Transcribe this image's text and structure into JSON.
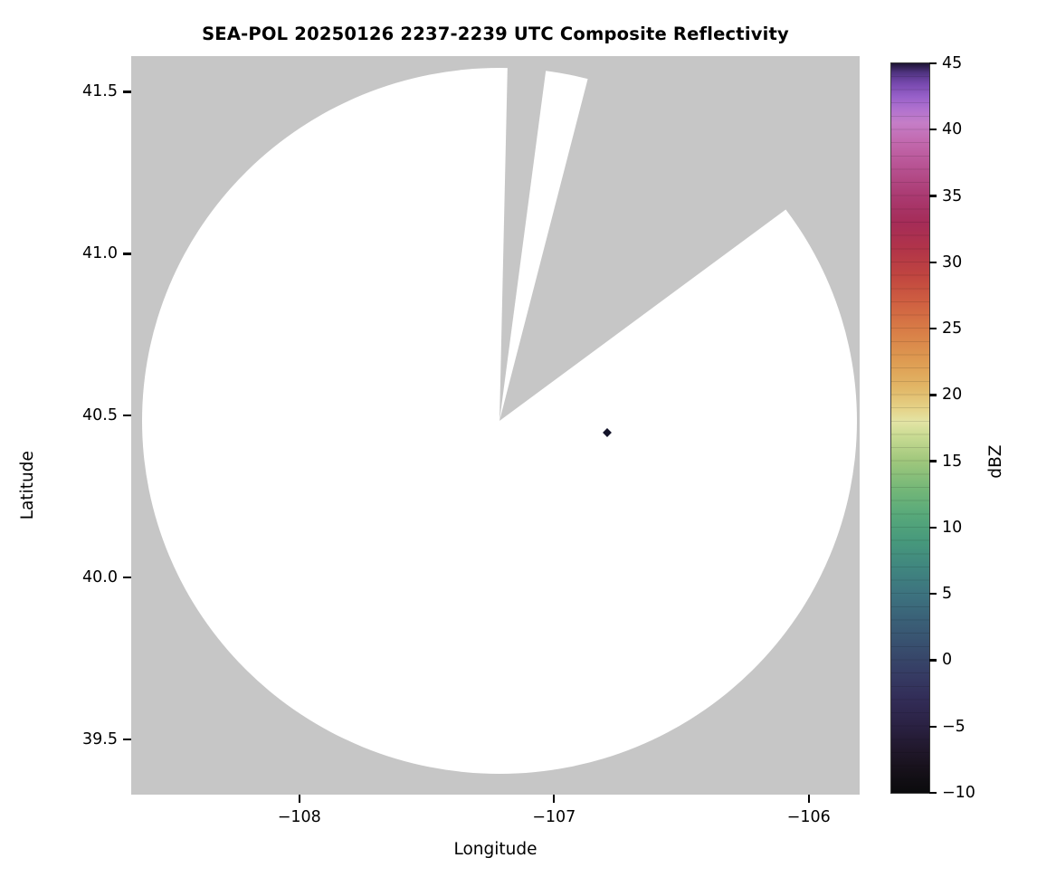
{
  "title": "SEA-POL 20250126 2237-2239 UTC Composite Reflectivity",
  "axes": {
    "xlabel": "Longitude",
    "ylabel": "Latitude",
    "x_ticks": [
      {
        "value": -108,
        "label": "−108"
      },
      {
        "value": -107,
        "label": "−107"
      },
      {
        "value": -106,
        "label": "−106"
      }
    ],
    "y_ticks": [
      {
        "value": 41.5,
        "label": "41.5"
      },
      {
        "value": 41.0,
        "label": "41.0"
      },
      {
        "value": 40.5,
        "label": "40.5"
      },
      {
        "value": 40.0,
        "label": "40.0"
      },
      {
        "value": 39.5,
        "label": "39.5"
      }
    ]
  },
  "colorbar": {
    "label": "dBZ",
    "min": -10,
    "max": 45,
    "ticks": [
      {
        "value": 45,
        "label": "45"
      },
      {
        "value": 40,
        "label": "40"
      },
      {
        "value": 35,
        "label": "35"
      },
      {
        "value": 30,
        "label": "30"
      },
      {
        "value": 25,
        "label": "25"
      },
      {
        "value": 20,
        "label": "20"
      },
      {
        "value": 15,
        "label": "15"
      },
      {
        "value": 10,
        "label": "10"
      },
      {
        "value": 5,
        "label": "5"
      },
      {
        "value": 0,
        "label": "0"
      },
      {
        "value": -5,
        "label": "−5"
      },
      {
        "value": -10,
        "label": "−10"
      }
    ],
    "gradient_stops": [
      {
        "value": -10,
        "color": "#0b0b0d"
      },
      {
        "value": -8.5,
        "color": "#151018"
      },
      {
        "value": -7,
        "color": "#1f1628"
      },
      {
        "value": -5,
        "color": "#2a2142"
      },
      {
        "value": -3,
        "color": "#322c57"
      },
      {
        "value": -1,
        "color": "#363c64"
      },
      {
        "value": 1,
        "color": "#384e6e"
      },
      {
        "value": 3,
        "color": "#3a6077"
      },
      {
        "value": 5,
        "color": "#3d737f"
      },
      {
        "value": 7,
        "color": "#40867f"
      },
      {
        "value": 9,
        "color": "#47997c"
      },
      {
        "value": 11,
        "color": "#58a97a"
      },
      {
        "value": 13,
        "color": "#76b878"
      },
      {
        "value": 15,
        "color": "#9fc77c"
      },
      {
        "value": 17,
        "color": "#cbdc94"
      },
      {
        "value": 18,
        "color": "#e4e4a5"
      },
      {
        "value": 19,
        "color": "#e5d287"
      },
      {
        "value": 20.5,
        "color": "#e2b767"
      },
      {
        "value": 22.5,
        "color": "#de9c52"
      },
      {
        "value": 25,
        "color": "#d87b46"
      },
      {
        "value": 27,
        "color": "#cf5f41"
      },
      {
        "value": 29,
        "color": "#c04540"
      },
      {
        "value": 31,
        "color": "#b13449"
      },
      {
        "value": 33,
        "color": "#a52c58"
      },
      {
        "value": 35,
        "color": "#aa3a71"
      },
      {
        "value": 37,
        "color": "#b6508f"
      },
      {
        "value": 39,
        "color": "#c268ad"
      },
      {
        "value": 40.5,
        "color": "#c57ec7"
      },
      {
        "value": 41.5,
        "color": "#b172cf"
      },
      {
        "value": 42.5,
        "color": "#9760c9"
      },
      {
        "value": 43.5,
        "color": "#7648ad"
      },
      {
        "value": 44.3,
        "color": "#4f3380"
      },
      {
        "value": 45,
        "color": "#1d1433"
      }
    ]
  },
  "plot": {
    "no_data_color": "#c6c6c6",
    "coverage_color": "#ffffff",
    "echo_color": "#14142a"
  },
  "chart_data": {
    "type": "heatmap",
    "title": "SEA-POL 20250126 2237-2239 UTC Composite Reflectivity",
    "xlabel": "Longitude",
    "ylabel": "Latitude",
    "xlim": [
      -108.66,
      -105.8
    ],
    "ylim": [
      39.33,
      41.61
    ],
    "x_ticks": [
      -108,
      -107,
      -106
    ],
    "y_ticks": [
      41.5,
      41.0,
      40.5,
      40.0,
      39.5
    ],
    "grid": false,
    "legend": false,
    "colorbar": {
      "label": "dBZ",
      "min": -10,
      "max": 45,
      "tick_step": 5,
      "colormap": "spectral radar colormap (dark purple-blue → teal → green → yellow → orange → red → magenta → purple-black)"
    },
    "radar": {
      "name": "SEA-POL",
      "date": "20250126",
      "time_window_utc": "2237-2239",
      "product": "Composite Reflectivity",
      "center_lon": -107.21,
      "center_lat": 40.5,
      "range_lon_deg": 1.41,
      "range_lat_deg": 1.09
    },
    "coverage": {
      "description": "White circular radar scan footprint on gray no-data background; two gray beam-blocked sectors radiating from the radar center",
      "blocked_sectors_azimuth_deg": [
        [
          1,
          7
        ],
        [
          15,
          53
        ]
      ]
    },
    "echoes": [
      {
        "lon": -106.77,
        "lat": 40.45,
        "dbz_approx": -8,
        "note": "single tiny dark echo pixel"
      }
    ]
  }
}
